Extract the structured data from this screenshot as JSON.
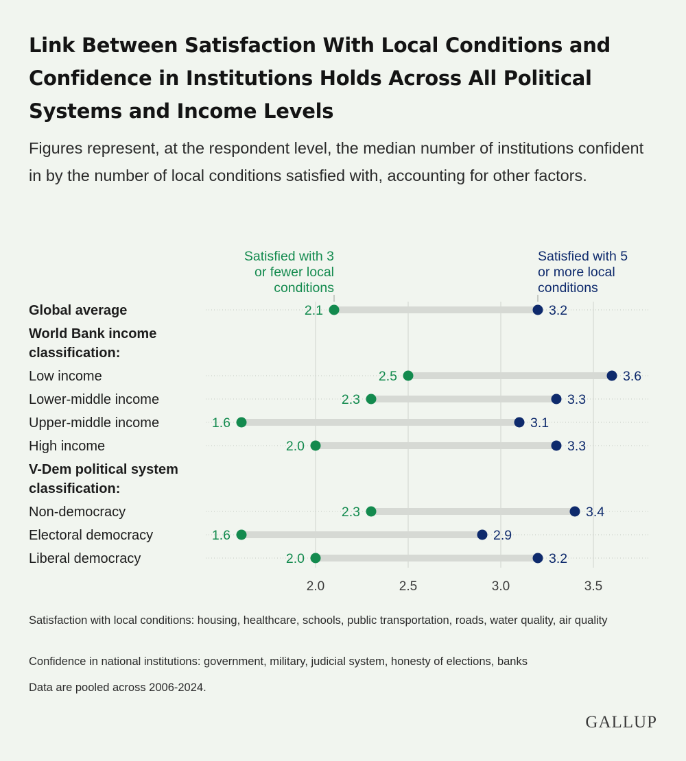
{
  "title": "Link Between Satisfaction With Local Conditions and Confidence in Institutions Holds Across All Political Systems and Income Levels",
  "subtitle": "Figures represent, at the respondent level, the median number of institutions confident in by the number of local conditions satisfied with, accounting for other factors.",
  "notes": [
    "Satisfaction with local conditions: housing, healthcare, schools, public transportation, roads, water quality, air quality",
    "Confidence in national institutions: government, military, judicial system, honesty of elections, banks",
    "Data are pooled across 2006-2024."
  ],
  "logo": "GALLUP",
  "colors": {
    "low": "#138a4e",
    "high": "#0e2a6c",
    "bar": "#d6d9d4",
    "grid": "#cfd3cc"
  },
  "chart_data": {
    "type": "dumbbell",
    "xlim": [
      1.6,
      3.75
    ],
    "x_ticks": [
      2.0,
      2.5,
      3.0,
      3.5
    ],
    "x_tick_labels": [
      "2.0",
      "2.5",
      "3.0",
      "3.5"
    ],
    "grid": "vertical",
    "legend": {
      "low": "Satisfied with 3 or fewer local conditions",
      "high": "Satisfied with 5 or more local conditions"
    },
    "series": [
      {
        "name": "Satisfied with 3 or fewer local conditions",
        "key": "low"
      },
      {
        "name": "Satisfied with 5 or more local conditions",
        "key": "high"
      }
    ],
    "rows": [
      {
        "label": "Global average",
        "bold": true,
        "low": 2.1,
        "high": 3.2,
        "low_label": "2.1",
        "high_label": "3.2"
      },
      {
        "label": "World Bank income classification:",
        "header": true
      },
      {
        "label": "Low income",
        "low": 2.5,
        "high": 3.6,
        "low_label": "2.5",
        "high_label": "3.6"
      },
      {
        "label": "Lower-middle income",
        "low": 2.3,
        "high": 3.3,
        "low_label": "2.3",
        "high_label": "3.3"
      },
      {
        "label": "Upper-middle income",
        "low": 1.6,
        "high": 3.1,
        "low_label": "1.6",
        "high_label": "3.1"
      },
      {
        "label": "High income",
        "low": 2.0,
        "high": 3.3,
        "low_label": "2.0",
        "high_label": "3.3"
      },
      {
        "label": "V-Dem political system classification:",
        "header": true
      },
      {
        "label": "Non-democracy",
        "low": 2.3,
        "high": 3.4,
        "low_label": "2.3",
        "high_label": "3.4"
      },
      {
        "label": "Electoral democracy",
        "low": 1.6,
        "high": 2.9,
        "low_label": "1.6",
        "high_label": "2.9"
      },
      {
        "label": "Liberal democracy",
        "low": 2.0,
        "high": 3.2,
        "low_label": "2.0",
        "high_label": "3.2"
      }
    ]
  }
}
